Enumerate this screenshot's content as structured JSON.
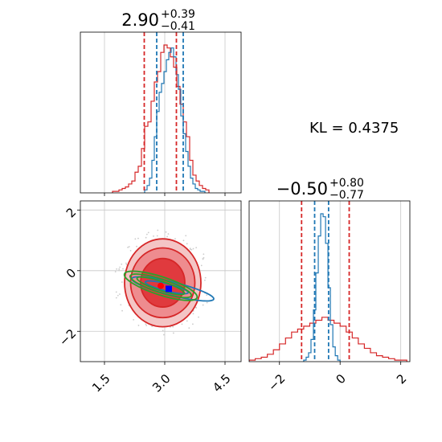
{
  "chart_data": [
    {
      "type": "histogram",
      "panel": "top-left marginal (parameter 1)",
      "title": {
        "value": "2.90",
        "plus": "+0.39",
        "minus": "−0.41"
      },
      "xlim": [
        0.9,
        4.9
      ],
      "x_ticks": [
        1.5,
        3.0,
        4.5
      ],
      "show_tick_labels": false,
      "series": [
        {
          "color": "#d62728",
          "edges": [
            1.7,
            1.78,
            1.86,
            1.94,
            2.02,
            2.1,
            2.18,
            2.26,
            2.34,
            2.42,
            2.5,
            2.58,
            2.66,
            2.74,
            2.82,
            2.9,
            2.98,
            3.06,
            3.14,
            3.22,
            3.3,
            3.38,
            3.46,
            3.54,
            3.62,
            3.7,
            3.78,
            3.86,
            3.94,
            4.02,
            4.1
          ],
          "counts": [
            1,
            1,
            2,
            3,
            4,
            6,
            8,
            14,
            18,
            30,
            45,
            48,
            62,
            75,
            82,
            95,
            100,
            98,
            92,
            85,
            72,
            60,
            48,
            38,
            22,
            12,
            8,
            5,
            3,
            2
          ]
        },
        {
          "color": "#1f77b4",
          "edges": [
            2.5,
            2.56,
            2.62,
            2.68,
            2.74,
            2.8,
            2.86,
            2.92,
            2.98,
            3.04,
            3.1,
            3.16,
            3.22,
            3.28,
            3.34,
            3.4,
            3.46,
            3.52,
            3.58,
            3.64,
            3.7,
            3.76,
            3.82,
            3.88,
            3.94,
            4.0
          ],
          "counts": [
            2,
            5,
            10,
            22,
            38,
            55,
            68,
            74,
            82,
            90,
            95,
            98,
            92,
            80,
            70,
            52,
            40,
            28,
            18,
            10,
            6,
            3,
            2,
            1,
            1
          ]
        }
      ],
      "quantile_lines": [
        {
          "color": "#d62728",
          "values": [
            2.49,
            3.29
          ]
        },
        {
          "color": "#1f77b4",
          "values": [
            2.8,
            3.46
          ]
        }
      ]
    },
    {
      "type": "contour",
      "panel": "bottom-left 2D (parameter 1 vs parameter 2)",
      "xlim": [
        0.9,
        4.9
      ],
      "ylim": [
        -3.0,
        2.3
      ],
      "x_ticks": [
        1.5,
        3.0,
        4.5
      ],
      "x_tick_labels": [
        "1.5",
        "3.0",
        "4.5"
      ],
      "y_ticks": [
        -2,
        0,
        2
      ],
      "y_tick_labels": [
        "−2",
        "0",
        "2"
      ],
      "red_filled_contours": [
        {
          "center": [
            2.95,
            -0.4
          ],
          "rx": 0.95,
          "ry": 1.45,
          "fill": "#f4c5c5",
          "stroke": "#d62728"
        },
        {
          "center": [
            2.95,
            -0.4
          ],
          "rx": 0.8,
          "ry": 1.15,
          "fill": "#ee8c8f",
          "stroke": "#d62728"
        },
        {
          "center": [
            2.95,
            -0.4
          ],
          "rx": 0.55,
          "ry": 0.8,
          "fill": "#e03a3e",
          "stroke": "#d62728"
        }
      ],
      "blue_contours": [
        {
          "center": [
            3.2,
            -0.6
          ],
          "rx": 1.05,
          "ry": 0.22,
          "angle": -14,
          "stroke": "#1f77b4"
        },
        {
          "center": [
            3.05,
            -0.55
          ],
          "rx": 0.55,
          "ry": 0.12,
          "angle": -14,
          "stroke": "#1f77b4"
        }
      ],
      "green_contours": [
        {
          "center": [
            2.9,
            -0.5
          ],
          "rx": 0.95,
          "ry": 0.3,
          "angle": -18,
          "stroke": "#2ca02c"
        },
        {
          "center": [
            2.9,
            -0.5
          ],
          "rx": 0.8,
          "ry": 0.22,
          "angle": -18,
          "stroke": "#2ca02c"
        },
        {
          "center": [
            2.9,
            -0.5
          ],
          "rx": 0.62,
          "ry": 0.15,
          "angle": -18,
          "stroke": "#2ca02c"
        }
      ],
      "truth_marker": {
        "x": 3.1,
        "y": -0.6,
        "color": "#0000ff"
      },
      "red_marker": {
        "x": 2.9,
        "y": -0.5,
        "color": "#ff0000"
      }
    },
    {
      "type": "histogram",
      "panel": "bottom-right marginal (parameter 2)",
      "title": {
        "value": "−0.50",
        "plus": "+0.80",
        "minus": "−0.77"
      },
      "xlim": [
        -3.0,
        2.3
      ],
      "x_ticks": [
        -2,
        0,
        2
      ],
      "x_tick_labels": [
        "−2",
        "0",
        "2"
      ],
      "series": [
        {
          "color": "#d62728",
          "edges": [
            -3.0,
            -2.8,
            -2.6,
            -2.4,
            -2.2,
            -2.0,
            -1.8,
            -1.6,
            -1.4,
            -1.2,
            -1.0,
            -0.8,
            -0.6,
            -0.4,
            -0.2,
            0.0,
            0.2,
            0.4,
            0.6,
            0.8,
            1.0,
            1.2,
            1.4,
            1.6,
            1.8,
            2.0,
            2.2
          ],
          "counts": [
            1,
            2,
            3,
            5,
            8,
            12,
            16,
            20,
            22,
            24,
            26,
            28,
            30,
            28,
            26,
            24,
            20,
            16,
            12,
            9,
            6,
            4,
            3,
            2,
            1,
            1
          ]
        },
        {
          "color": "#1f77b4",
          "edges": [
            -1.2,
            -1.12,
            -1.04,
            -0.96,
            -0.88,
            -0.8,
            -0.72,
            -0.64,
            -0.56,
            -0.48,
            -0.4,
            -0.32,
            -0.24,
            -0.16,
            -0.08,
            0.0
          ],
          "counts": [
            1,
            3,
            6,
            15,
            35,
            60,
            85,
            100,
            98,
            80,
            50,
            25,
            10,
            4,
            1
          ]
        }
      ],
      "quantile_lines": [
        {
          "color": "#d62728",
          "values": [
            -1.27,
            0.3
          ]
        },
        {
          "color": "#1f77b4",
          "values": [
            -0.84,
            -0.38
          ]
        }
      ]
    }
  ],
  "annotation": {
    "kl_text": "KL = 0.4375"
  }
}
